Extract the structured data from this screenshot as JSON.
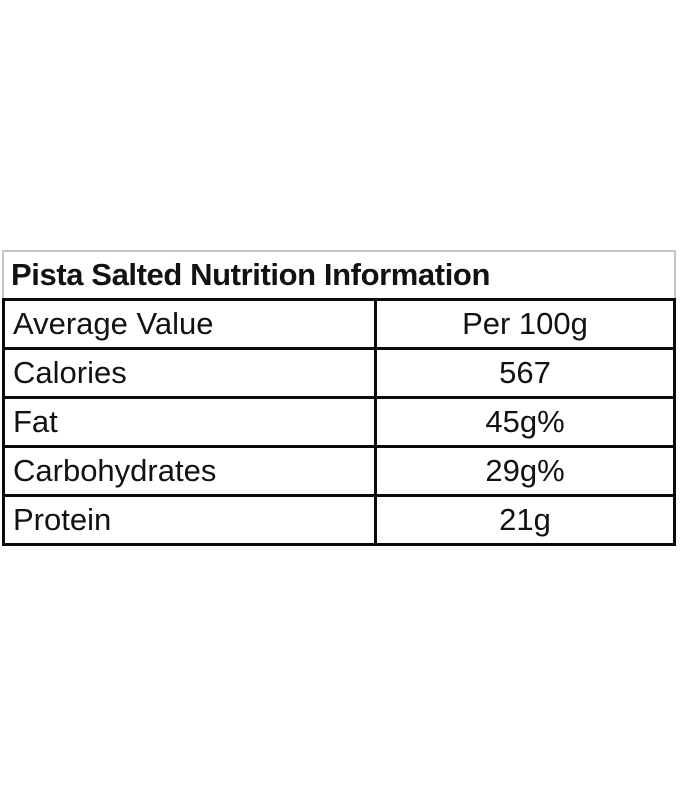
{
  "page": {
    "background": "#ffffff"
  },
  "table": {
    "title": "Pista Salted Nutrition Information",
    "header": {
      "label": "Average Value",
      "value": "Per 100g"
    },
    "rows": [
      {
        "label": "Calories",
        "value": "567"
      },
      {
        "label": "Fat",
        "value": "45g%"
      },
      {
        "label": "Carbohydrates",
        "value": "29g%"
      },
      {
        "label": "Protein",
        "value": "21g"
      }
    ],
    "colors": {
      "outer_border": "#c6c6c6",
      "grid_border": "#0a0a0a",
      "text": "#121212"
    }
  }
}
